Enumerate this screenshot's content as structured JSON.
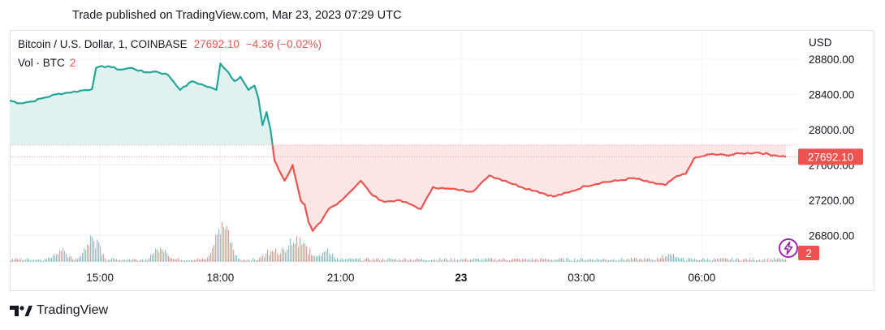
{
  "header": {
    "caption": "Trade published on TradingView.com, Mar 23, 2023 07:29 UTC"
  },
  "legend": {
    "symbol": "Bitcoin / U.S. Dollar, 1, COINBASE",
    "last": "27692.10",
    "change": "−4.36 (−0.02%)",
    "volume_label": "Vol · BTC",
    "volume_value": "2"
  },
  "axis": {
    "currency": "USD"
  },
  "price_badge": "27692.10",
  "volume_badge": "2",
  "brand": "TradingView",
  "colors": {
    "up": "#26a69a",
    "down": "#ef5350",
    "up_fill": "#e0f2ef",
    "down_fill": "#fde6e6",
    "grid": "#f0f3fa",
    "axis_text": "#131722",
    "bolt": "#9c27b0"
  },
  "chart_data": {
    "type": "area",
    "title": "Bitcoin / U.S. Dollar, 1, COINBASE",
    "x_tick_labels": [
      "15:00",
      "18:00",
      "21:00",
      "23",
      "03:00",
      "06:00"
    ],
    "x_ticks_hours": [
      15,
      18,
      21,
      24,
      27,
      30
    ],
    "xlim_hours": [
      12.75,
      32.4
    ],
    "y_tick_labels": [
      "28800.00",
      "28400.00",
      "28000.00",
      "27600.00",
      "27200.00",
      "26800.00"
    ],
    "y_ticks": [
      28800,
      28400,
      28000,
      27600,
      27200,
      26800
    ],
    "ylim": [
      26500,
      28900
    ],
    "baseline": 27825,
    "current_price": 27692.1,
    "grid": true,
    "series": [
      {
        "x_hours": [
          12.75,
          13.0,
          13.3,
          13.6,
          13.9,
          14.2,
          14.5,
          14.8,
          14.9,
          15.2,
          15.5,
          15.8,
          16.1,
          16.4,
          16.7,
          17.0,
          17.3,
          17.6,
          17.9,
          18.0,
          18.2,
          18.35,
          18.5,
          18.7,
          18.85,
          18.95,
          19.05,
          19.15,
          19.25,
          19.35,
          19.45,
          19.6,
          19.7,
          19.8,
          19.9,
          20.0,
          20.1,
          20.2,
          20.3,
          20.5,
          20.7,
          20.9,
          21.2,
          21.5,
          21.8,
          22.1,
          22.4,
          22.7,
          23.0,
          23.3,
          23.6,
          23.9,
          24.3,
          24.7,
          25.1,
          25.5,
          25.9,
          26.3,
          26.7,
          27.1,
          27.5,
          27.9,
          28.3,
          28.7,
          29.1,
          29.3,
          29.6,
          29.8,
          30.2,
          30.6,
          31.0,
          31.4,
          31.8,
          32.1
        ],
        "y": [
          28330,
          28300,
          28320,
          28360,
          28400,
          28420,
          28440,
          28460,
          28700,
          28720,
          28680,
          28700,
          28650,
          28660,
          28620,
          28450,
          28550,
          28500,
          28450,
          28750,
          28650,
          28550,
          28600,
          28450,
          28500,
          28350,
          28050,
          28200,
          28000,
          27650,
          27550,
          27420,
          27500,
          27600,
          27400,
          27200,
          27150,
          26950,
          26850,
          26950,
          27100,
          27150,
          27280,
          27420,
          27250,
          27180,
          27200,
          27160,
          27100,
          27350,
          27330,
          27320,
          27300,
          27480,
          27420,
          27350,
          27300,
          27240,
          27290,
          27360,
          27400,
          27420,
          27450,
          27400,
          27370,
          27450,
          27500,
          27670,
          27720,
          27710,
          27730,
          27740,
          27710,
          27692
        ]
      }
    ],
    "volume_max": 120,
    "volume_peaks": [
      {
        "x_hours": 14.0,
        "value": 25
      },
      {
        "x_hours": 14.8,
        "value": 62
      },
      {
        "x_hours": 16.5,
        "value": 32
      },
      {
        "x_hours": 18.0,
        "value": 65
      },
      {
        "x_hours": 18.1,
        "value": 50
      },
      {
        "x_hours": 19.3,
        "value": 35
      },
      {
        "x_hours": 19.8,
        "value": 50
      },
      {
        "x_hours": 20.1,
        "value": 30
      },
      {
        "x_hours": 20.6,
        "value": 25
      },
      {
        "x_hours": 29.2,
        "value": 15
      }
    ]
  }
}
